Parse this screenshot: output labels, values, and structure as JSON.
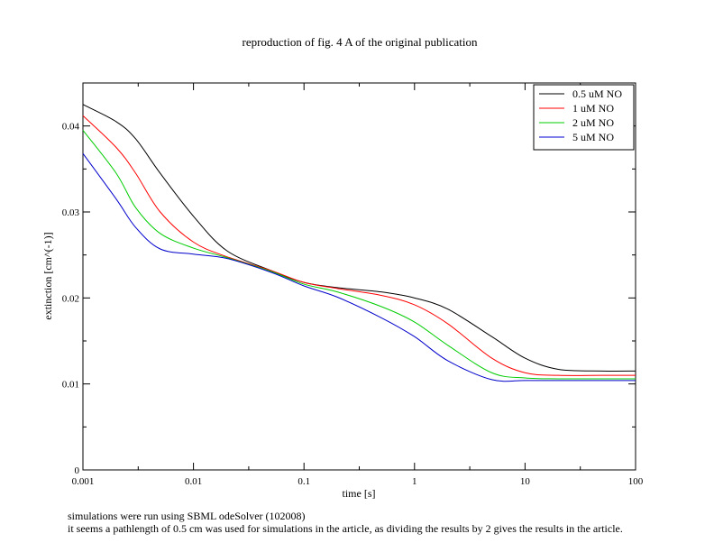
{
  "chart_data": {
    "type": "line",
    "title": "reproduction of fig. 4 A of the original publication",
    "xlabel": "time [s]",
    "ylabel": "extinction [cm^(-1)]",
    "x_scale": "log",
    "xlim": [
      0.001,
      100
    ],
    "ylim": [
      0,
      0.045
    ],
    "x_ticks": [
      "0.001",
      "0.01",
      "0.1",
      "1",
      "10",
      "100"
    ],
    "y_ticks": [
      "0",
      "0.01",
      "0.02",
      "0.03",
      "0.04"
    ],
    "legend_position": "top-right",
    "grid": false,
    "x": [
      0.001,
      0.002,
      0.003,
      0.005,
      0.01,
      0.02,
      0.05,
      0.1,
      0.2,
      0.5,
      1,
      2,
      5,
      10,
      20,
      50,
      100
    ],
    "series": [
      {
        "name": "0.5 uM NO",
        "color": "#000000",
        "values": [
          0.0425,
          0.0405,
          0.0385,
          0.0345,
          0.0295,
          0.0255,
          0.0232,
          0.0218,
          0.0212,
          0.0207,
          0.02,
          0.0187,
          0.0155,
          0.013,
          0.0117,
          0.0115,
          0.0115
        ]
      },
      {
        "name": "1 uM NO",
        "color": "#ff0000",
        "values": [
          0.0412,
          0.0375,
          0.0345,
          0.03,
          0.0265,
          0.0248,
          0.0232,
          0.0218,
          0.0211,
          0.0203,
          0.0192,
          0.017,
          0.013,
          0.0113,
          0.011,
          0.011,
          0.011
        ]
      },
      {
        "name": "2 uM NO",
        "color": "#00cc00",
        "values": [
          0.0395,
          0.0345,
          0.0305,
          0.0275,
          0.0258,
          0.0247,
          0.0231,
          0.0216,
          0.0207,
          0.019,
          0.0172,
          0.0145,
          0.0113,
          0.0107,
          0.0106,
          0.0106,
          0.0106
        ]
      },
      {
        "name": "5 uM NO",
        "color": "#0000cc",
        "values": [
          0.0368,
          0.0315,
          0.0282,
          0.0257,
          0.0251,
          0.0246,
          0.023,
          0.0214,
          0.0201,
          0.0177,
          0.0155,
          0.0127,
          0.0105,
          0.0104,
          0.0104,
          0.0104,
          0.0104
        ]
      }
    ]
  },
  "notes": [
    "simulations were run using SBML odeSolver (102008)",
    "it seems a pathlength of 0.5 cm was used for simulations in the article, as dividing the results by 2 gives the results in the article."
  ]
}
